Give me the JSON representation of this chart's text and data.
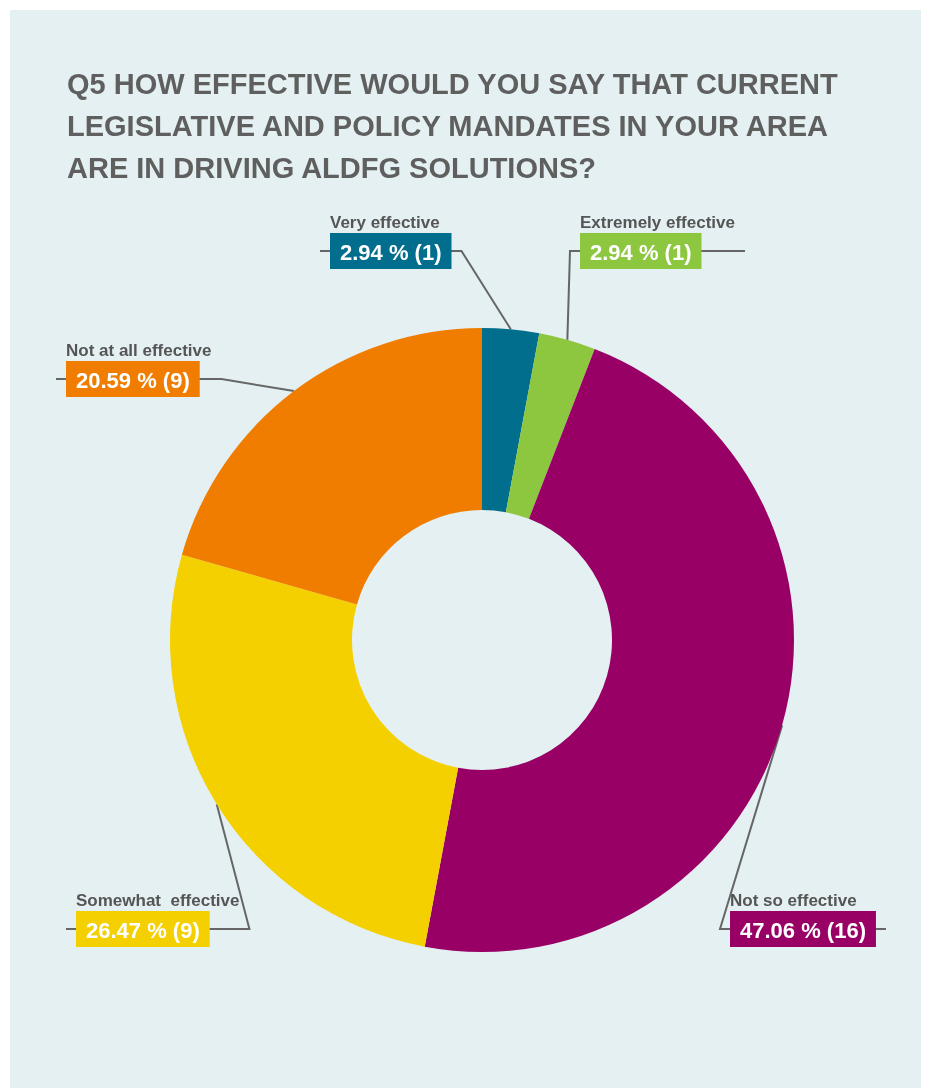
{
  "chart_data": {
    "type": "donut",
    "title": "Q5 HOW EFFECTIVE WOULD YOU SAY THAT CURRENT LEGISLATIVE AND POLICY MANDATES IN YOUR AREA ARE IN DRIVING ALDFG SOLUTIONS?",
    "categories": [
      "Very effective",
      "Extremely effective",
      "Not so effective",
      "Somewhat  effective",
      "Not at all effective"
    ],
    "values": [
      2.94,
      2.94,
      47.06,
      26.47,
      20.59
    ],
    "colors": [
      "#006e8c",
      "#8dc63f",
      "#990066",
      "#f5d000",
      "#f07d00"
    ],
    "value_labels": [
      "2.94 % (1)",
      "2.94 % (1)",
      "47.06 % (16)",
      "26.47 % (9)",
      "20.59 % (9)"
    ]
  }
}
